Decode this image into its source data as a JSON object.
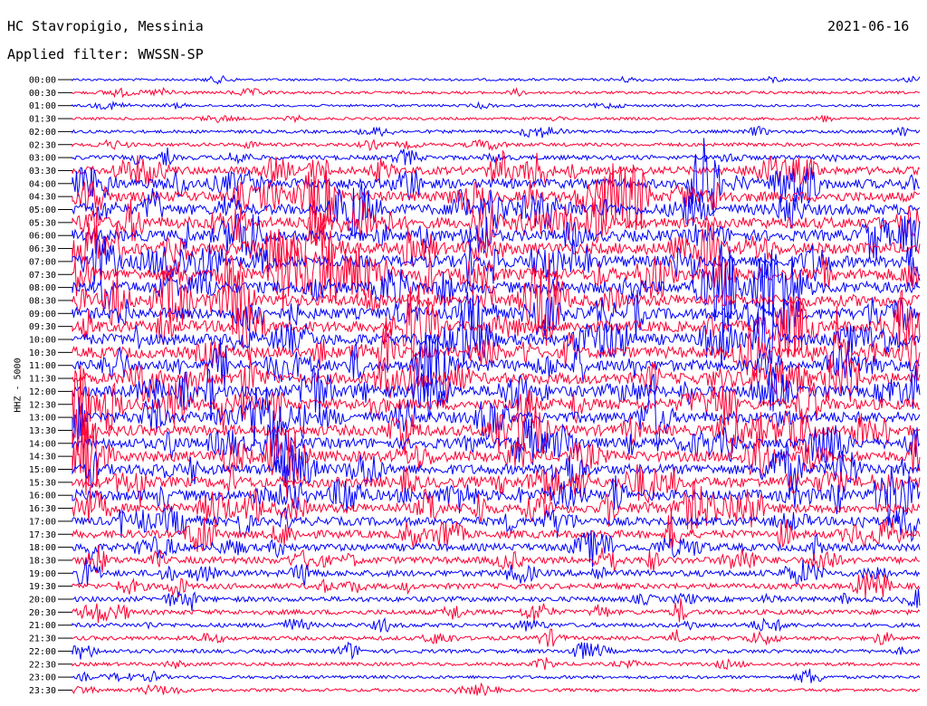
{
  "header": {
    "station": "HC Stavropigio, Messinia",
    "filter": "Applied filter: WWSSN-SP",
    "date": "2021-06-16",
    "channel": "HHZ - 5000"
  },
  "colors": {
    "trace_a": "#0000ff",
    "trace_b": "#ff0033",
    "background": "#ffffff",
    "text": "#000000"
  },
  "chart_data": {
    "type": "line",
    "title": "HC Stavropigio, Messinia",
    "subtitle": "Applied filter: WWSSN-SP",
    "date": "2021-06-16",
    "ylabel": "HHZ - 5000",
    "row_labels": [
      "00:00",
      "00:30",
      "01:00",
      "01:30",
      "02:00",
      "02:30",
      "03:00",
      "03:30",
      "04:00",
      "04:30",
      "05:00",
      "05:30",
      "06:00",
      "06:30",
      "07:00",
      "07:30",
      "08:00",
      "08:30",
      "09:00",
      "09:30",
      "10:00",
      "10:30",
      "11:00",
      "11:30",
      "12:00",
      "12:30",
      "13:00",
      "13:30",
      "14:00",
      "14:30",
      "15:00",
      "15:30",
      "16:00",
      "16:30",
      "17:00",
      "17:30",
      "18:00",
      "18:30",
      "19:00",
      "19:30",
      "20:00",
      "20:30",
      "21:00",
      "21:30",
      "22:00",
      "22:30",
      "23:00",
      "23:30"
    ],
    "row_colors": "alternating blue (even rows) and red (odd rows)",
    "activity_level": [
      0.05,
      0.08,
      0.06,
      0.07,
      0.12,
      0.15,
      0.25,
      0.55,
      0.7,
      0.75,
      0.8,
      0.85,
      0.85,
      0.9,
      0.9,
      0.9,
      0.9,
      0.9,
      0.85,
      0.85,
      0.85,
      0.85,
      0.85,
      0.85,
      0.85,
      0.85,
      0.85,
      0.8,
      0.8,
      0.8,
      0.75,
      0.8,
      0.8,
      0.7,
      0.6,
      0.55,
      0.5,
      0.45,
      0.4,
      0.35,
      0.3,
      0.28,
      0.22,
      0.2,
      0.18,
      0.15,
      0.12,
      0.12
    ]
  }
}
